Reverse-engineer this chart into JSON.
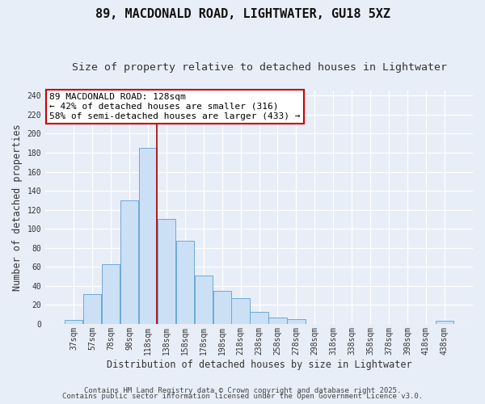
{
  "title": "89, MACDONALD ROAD, LIGHTWATER, GU18 5XZ",
  "subtitle": "Size of property relative to detached houses in Lightwater",
  "xlabel": "Distribution of detached houses by size in Lightwater",
  "ylabel": "Number of detached properties",
  "bar_labels": [
    "37sqm",
    "57sqm",
    "78sqm",
    "98sqm",
    "118sqm",
    "138sqm",
    "158sqm",
    "178sqm",
    "198sqm",
    "218sqm",
    "238sqm",
    "258sqm",
    "278sqm",
    "298sqm",
    "318sqm",
    "338sqm",
    "358sqm",
    "378sqm",
    "398sqm",
    "418sqm",
    "438sqm"
  ],
  "bar_values": [
    4,
    31,
    63,
    130,
    185,
    110,
    87,
    51,
    35,
    27,
    13,
    7,
    5,
    0,
    0,
    0,
    0,
    0,
    0,
    0,
    3
  ],
  "bar_color": "#cce0f5",
  "bar_edge_color": "#6aaad4",
  "background_color": "#e8eef8",
  "plot_bg_color": "#e8eef8",
  "grid_color": "#ffffff",
  "vline_color": "#aa0000",
  "annotation_text_line1": "89 MACDONALD ROAD: 128sqm",
  "annotation_text_line2": "← 42% of detached houses are smaller (316)",
  "annotation_text_line3": "58% of semi-detached houses are larger (433) →",
  "annotation_box_color": "#ffffff",
  "annotation_box_edge": "#cc0000",
  "ylim": [
    0,
    245
  ],
  "yticks": [
    0,
    20,
    40,
    60,
    80,
    100,
    120,
    140,
    160,
    180,
    200,
    220,
    240
  ],
  "footer1": "Contains HM Land Registry data © Crown copyright and database right 2025.",
  "footer2": "Contains public sector information licensed under the Open Government Licence v3.0.",
  "title_fontsize": 11,
  "subtitle_fontsize": 9.5,
  "tick_fontsize": 7,
  "ylabel_fontsize": 8.5,
  "xlabel_fontsize": 8.5,
  "annotation_fontsize": 8,
  "footer_fontsize": 6.5,
  "vline_x_index": 4.5
}
